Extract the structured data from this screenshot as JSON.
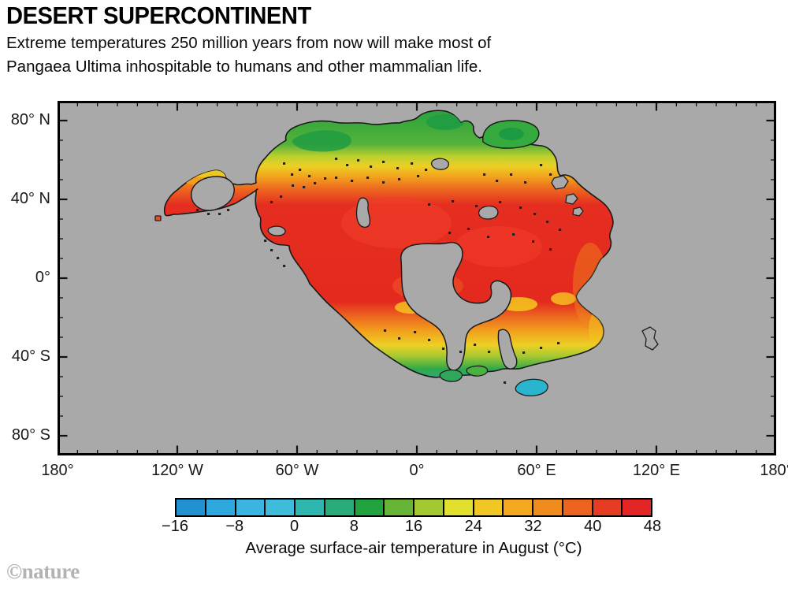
{
  "header": {
    "title": "DESERT SUPERCONTINENT",
    "subtitle_line1": "Extreme temperatures 250 million years from now will make most of",
    "subtitle_line2": "Pangaea Ultima inhospitable to humans and other mammalian life."
  },
  "watermark": "©nature",
  "chart_data": {
    "type": "heatmap",
    "subtype": "filled-contour-world-map",
    "title": "DESERT SUPERCONTINENT",
    "description": "Projected average surface-air temperature in August on the supercontinent Pangaea Ultima, 250 million years from now. Land is colour-filled by temperature; ocean is grey.",
    "x_axis": {
      "label": "longitude",
      "range_deg": [
        -180,
        180
      ],
      "major_tick_lons": [
        -180,
        -120,
        -60,
        0,
        60,
        120,
        180
      ],
      "tick_labels": [
        "180°",
        "120° W",
        "60° W",
        "0°",
        "60° E",
        "120° E",
        "180°"
      ],
      "minor_tick_step_deg": 10
    },
    "y_axis": {
      "label": "latitude",
      "range_deg": [
        -90,
        90
      ],
      "major_tick_lats": [
        80,
        40,
        0,
        -40,
        -80
      ],
      "tick_labels": [
        "80° N",
        "40° N",
        "0°",
        "40° S",
        "80° S"
      ],
      "minor_tick_step_deg": 10
    },
    "colorbar": {
      "caption": "Average surface-air temperature in August (°C)",
      "range_c": [
        -16,
        48
      ],
      "cell_step_c": 4,
      "tick_values": [
        -16,
        -8,
        0,
        8,
        16,
        24,
        32,
        40,
        48
      ],
      "tick_labels": [
        "−16",
        "−8",
        "0",
        "8",
        "16",
        "24",
        "32",
        "40",
        "48"
      ],
      "colors": [
        "#2191d1",
        "#2fa9dd",
        "#3cb4e0",
        "#3fbcd9",
        "#2eb5ad",
        "#28ac79",
        "#23a33f",
        "#66b537",
        "#a3c832",
        "#e3df2e",
        "#f0c724",
        "#f4a81d",
        "#f08c1d",
        "#ec6420",
        "#e63c24",
        "#e32526"
      ]
    },
    "ocean_color": "#a9a9a9",
    "map_regions": [
      {
        "region": "continental interior (most of Pangaea Ultima)",
        "approx_temp_c": "44 to 48"
      },
      {
        "region": "mid-latitude belts and eastern coast",
        "approx_temp_c": "28 to 40"
      },
      {
        "region": "northern coastal fringe (~60–75° N)",
        "approx_temp_c": "8 to 20"
      },
      {
        "region": "southern coastal fringe (~45–55° S)",
        "approx_temp_c": "8 to 24"
      },
      {
        "region": "southernmost island (~58° S)",
        "approx_temp_c": "−4 to 4"
      },
      {
        "region": "ocean",
        "approx_temp_c": "no data (grey)"
      }
    ]
  }
}
